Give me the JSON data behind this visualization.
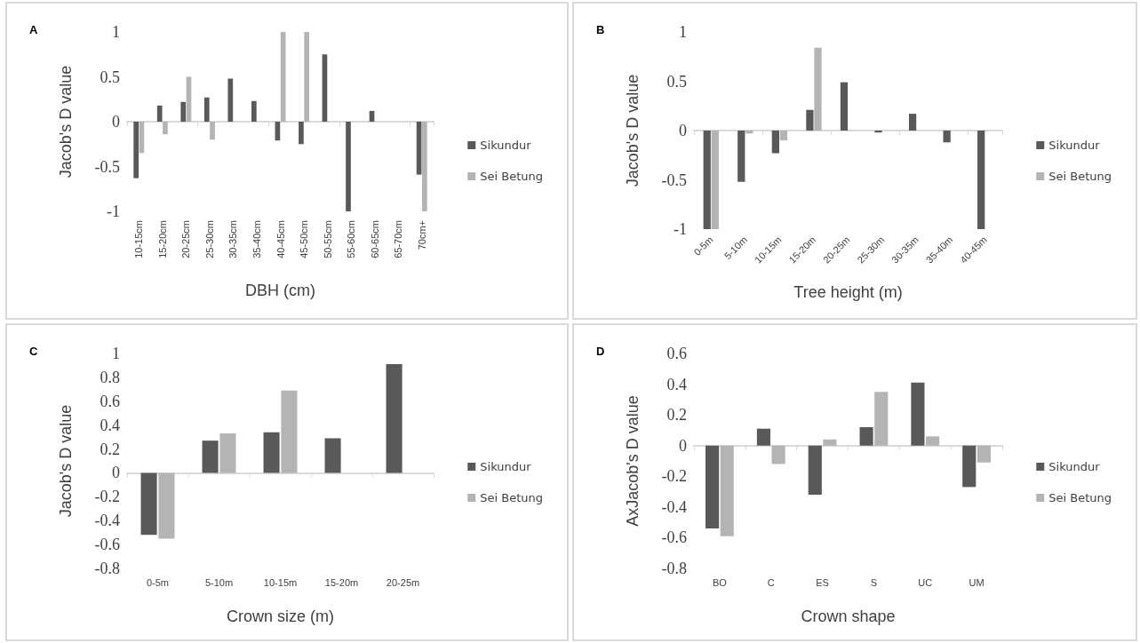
{
  "chart_data": [
    {
      "type": "bar",
      "title": "A",
      "xlabel": "DBH (cm)",
      "ylabel": "Jacob's D value",
      "legend": "right",
      "categories": [
        "10-15cm",
        "15-20cm",
        "20-25cm",
        "25-30cm",
        "30-35cm",
        "35-40cm",
        "40-45cm",
        "45-50cm",
        "50-55cm",
        "55-60cm",
        "60-65cm",
        "65-70cm",
        "70cm+"
      ],
      "series": [
        {
          "name": "Sikundur",
          "color": "#595959",
          "values": [
            -0.63,
            0.18,
            0.22,
            0.27,
            0.48,
            0.23,
            -0.21,
            -0.25,
            0.75,
            -1,
            0.12,
            null,
            -0.59
          ]
        },
        {
          "name": "Sei Betung",
          "color": "#b4b4b4",
          "values": [
            -0.35,
            -0.14,
            0.5,
            -0.2,
            null,
            null,
            1,
            1,
            null,
            null,
            null,
            null,
            -1
          ]
        }
      ],
      "ylim": [
        -1,
        1
      ],
      "yticks": [
        -1,
        -0.5,
        0,
        0.5,
        1
      ]
    },
    {
      "type": "bar",
      "title": "B",
      "xlabel": "Tree height (m)",
      "ylabel": "Jacob's D value",
      "legend": "right",
      "categories": [
        "0-5m",
        "5-10m",
        "10-15m",
        "15-20m",
        "20-25m",
        "25-30m",
        "30-35m",
        "35-40m",
        "40-45m"
      ],
      "series": [
        {
          "name": "Sikundur",
          "color": "#595959",
          "values": [
            -1,
            -0.52,
            -0.23,
            0.21,
            0.49,
            -0.02,
            0.17,
            -0.12,
            -1
          ]
        },
        {
          "name": "Sei Betung",
          "color": "#b4b4b4",
          "values": [
            -1,
            -0.03,
            -0.1,
            0.84,
            null,
            null,
            null,
            null,
            null
          ]
        }
      ],
      "ylim": [
        -1,
        1
      ],
      "yticks": [
        -1,
        -0.5,
        0,
        0.5,
        1
      ]
    },
    {
      "type": "bar",
      "title": "C",
      "xlabel": "Crown size (m)",
      "ylabel": "Jacob's D value",
      "legend": "right",
      "categories": [
        "0-5m",
        "5-10m",
        "10-15m",
        "15-20m",
        "20-25m"
      ],
      "series": [
        {
          "name": "Sikundur",
          "color": "#595959",
          "values": [
            -0.52,
            0.27,
            0.34,
            0.29,
            0.91
          ]
        },
        {
          "name": "Sei Betung",
          "color": "#b4b4b4",
          "values": [
            -0.55,
            0.33,
            0.69,
            null,
            null
          ]
        }
      ],
      "ylim": [
        -0.8,
        1
      ],
      "yticks": [
        -0.8,
        -0.6,
        -0.4,
        -0.2,
        0,
        0.2,
        0.4,
        0.6,
        0.8,
        1
      ]
    },
    {
      "type": "bar",
      "title": "D",
      "xlabel": "Crown shape",
      "ylabel": "AxJacob's D value",
      "legend": "right",
      "categories": [
        "BO",
        "C",
        "ES",
        "S",
        "UC",
        "UM"
      ],
      "series": [
        {
          "name": "Sikundur",
          "color": "#595959",
          "values": [
            -0.54,
            0.11,
            -0.32,
            0.12,
            0.41,
            -0.27
          ]
        },
        {
          "name": "Sei Betung",
          "color": "#b4b4b4",
          "values": [
            -0.59,
            -0.12,
            0.04,
            0.35,
            0.06,
            -0.11
          ]
        }
      ],
      "ylim": [
        -0.8,
        0.6
      ],
      "yticks": [
        -0.8,
        -0.6,
        -0.4,
        -0.2,
        0,
        0.2,
        0.4,
        0.6
      ]
    }
  ]
}
